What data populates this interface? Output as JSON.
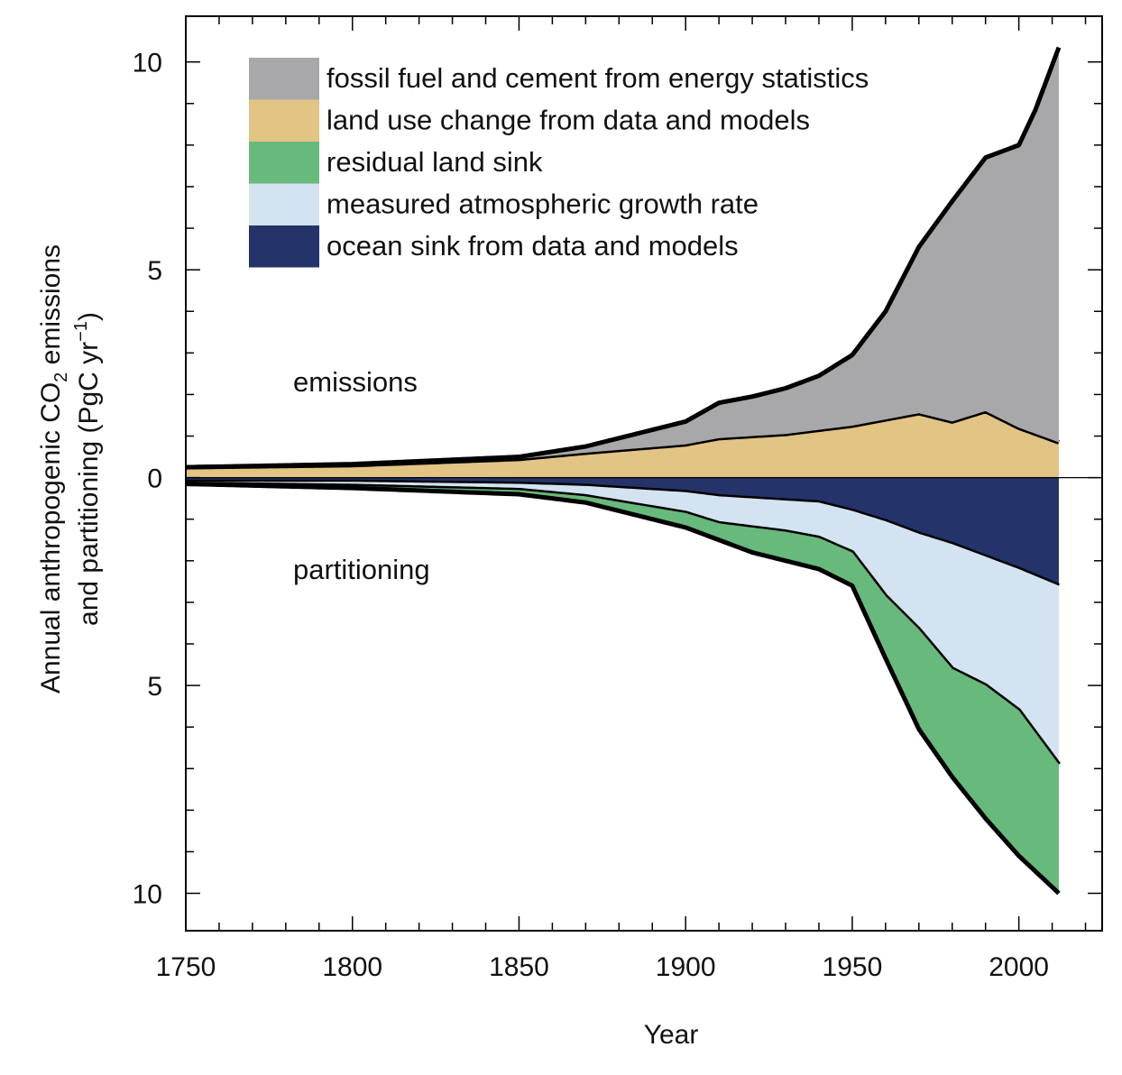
{
  "chart_data": {
    "type": "area",
    "xlabel": "Year",
    "ylabel": {
      "line1": "Annual anthropogenic CO",
      "line1_sub": "2",
      "line1_end": " emissions",
      "line2": "and partitioning (PgC yr",
      "line2_sup": "−1",
      "line2_end": ")"
    },
    "xlim": [
      1750,
      2025
    ],
    "ylim": [
      -10.9,
      11.1
    ],
    "x_ticks": [
      1750,
      1800,
      1850,
      1900,
      1950,
      2000
    ],
    "x_tick_labels": [
      "1750",
      "1800",
      "1850",
      "1900",
      "1950",
      "2000"
    ],
    "y_ticks": [
      10,
      5,
      0,
      -5,
      -10
    ],
    "y_tick_labels": [
      "10",
      "5",
      "0",
      "5",
      "10"
    ],
    "annotations": {
      "emissions": "emissions",
      "partitioning": "partitioning"
    },
    "legend": [
      {
        "label": "fossil fuel and cement from energy statistics",
        "color": "#a8a8aa"
      },
      {
        "label": "land use change from data and models",
        "color": "#e2c484"
      },
      {
        "label": "residual land sink",
        "color": "#68b97c"
      },
      {
        "label": "measured atmospheric growth rate",
        "color": "#d4e3f1"
      },
      {
        "label": "ocean sink from data and models",
        "color": "#24346a"
      }
    ],
    "legend_position": "top-left",
    "colors": {
      "fossil": "#a8a8aa",
      "land_use": "#e2c484",
      "land_sink": "#68b97c",
      "atmosphere": "#d4e3f1",
      "ocean": "#24346a",
      "outline": "#000000"
    },
    "series": [
      {
        "name": "land use change from data and models",
        "x": [
          1750,
          1800,
          1850,
          1870,
          1900,
          1910,
          1930,
          1950,
          1960,
          1970,
          1980,
          1990,
          2000,
          2012
        ],
        "values": [
          0.25,
          0.3,
          0.45,
          0.6,
          0.8,
          0.95,
          1.05,
          1.25,
          1.4,
          1.55,
          1.35,
          1.6,
          1.2,
          0.85
        ]
      },
      {
        "name": "fossil fuel and cement from energy statistics",
        "x": [
          1750,
          1850,
          1870,
          1900,
          1910,
          1920,
          1930,
          1940,
          1950,
          1960,
          1970,
          1980,
          1990,
          2000,
          2005,
          2012
        ],
        "values": [
          0.0,
          0.05,
          0.15,
          0.55,
          0.85,
          0.95,
          1.1,
          1.3,
          1.7,
          2.6,
          4.0,
          5.3,
          6.1,
          6.8,
          7.8,
          9.5
        ]
      },
      {
        "name": "ocean sink from data and models",
        "x": [
          1750,
          1800,
          1850,
          1870,
          1900,
          1910,
          1920,
          1930,
          1940,
          1950,
          1960,
          1970,
          1980,
          1990,
          2000,
          2012
        ],
        "values": [
          -0.1,
          -0.1,
          -0.15,
          -0.2,
          -0.35,
          -0.45,
          -0.5,
          -0.55,
          -0.6,
          -0.8,
          -1.05,
          -1.35,
          -1.6,
          -1.9,
          -2.2,
          -2.6
        ]
      },
      {
        "name": "measured atmospheric growth rate",
        "x": [
          1750,
          1800,
          1850,
          1870,
          1900,
          1910,
          1920,
          1930,
          1940,
          1950,
          1960,
          1970,
          1980,
          1990,
          2000,
          2012
        ],
        "values": [
          -0.05,
          -0.1,
          -0.15,
          -0.25,
          -0.5,
          -0.65,
          -0.7,
          -0.75,
          -0.85,
          -1.0,
          -1.8,
          -2.3,
          -3.0,
          -3.1,
          -3.4,
          -4.3
        ]
      },
      {
        "name": "residual land sink",
        "x": [
          1750,
          1800,
          1850,
          1870,
          1900,
          1910,
          1920,
          1930,
          1940,
          1950,
          1960,
          1970,
          1980,
          1990,
          2000,
          2012
        ],
        "values": [
          0.0,
          -0.05,
          -0.1,
          -0.15,
          -0.35,
          -0.4,
          -0.6,
          -0.7,
          -0.75,
          -0.8,
          -1.5,
          -2.4,
          -2.6,
          -3.2,
          -3.5,
          -3.1
        ]
      }
    ]
  }
}
